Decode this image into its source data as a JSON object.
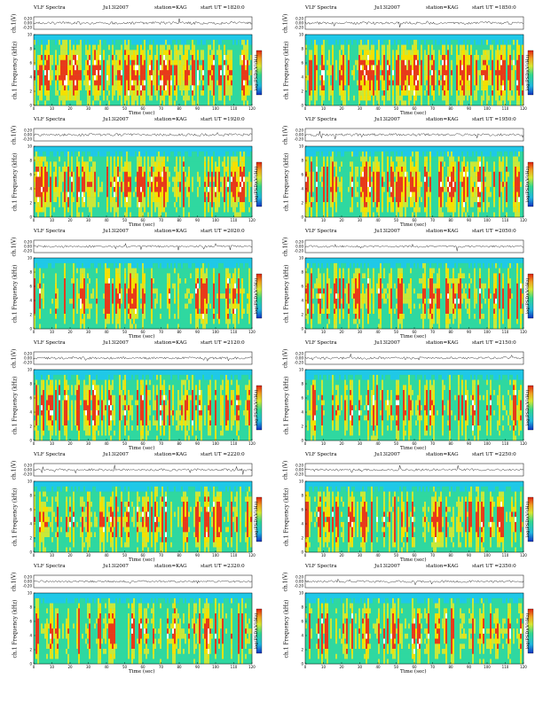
{
  "chart_data": [
    {
      "type": "heatmap",
      "header": {
        "title": "VLF Spectra",
        "date": "Ju13l2007",
        "station": "station=KAG",
        "start": "start  UT  =1820:0"
      },
      "ylabel_top": "ch.1(V)",
      "ylabel_main": "ch.1 Frequency (kHz)",
      "xlabel": "Time (sec)",
      "cbar_label": "log(PSD)(V²/Hz)",
      "x_ticks": [
        0,
        10,
        20,
        30,
        40,
        50,
        60,
        70,
        80,
        90,
        100,
        110,
        120
      ],
      "y_ticks": [
        0,
        2,
        4,
        6,
        8,
        10
      ],
      "y_ticks_top": [
        "0.20",
        "0.00",
        "-0.20"
      ],
      "xlim": [
        0,
        120
      ],
      "ylim": [
        0,
        10
      ],
      "activity": 0.62
    },
    {
      "type": "heatmap",
      "header": {
        "title": "VLF Spectra",
        "date": "Ju13l2007",
        "station": "station=KAG",
        "start": "start  UT  =1850:0"
      },
      "ylabel_top": "ch.1(V)",
      "ylabel_main": "ch.1 Frequency (kHz)",
      "xlabel": "Time (sec)",
      "cbar_label": "log(PSD)(V²/Hz)",
      "x_ticks": [
        0,
        10,
        20,
        30,
        40,
        50,
        60,
        70,
        80,
        90,
        100,
        110,
        120
      ],
      "y_ticks": [
        0,
        2,
        4,
        6,
        8,
        10
      ],
      "y_ticks_top": [
        "0.20",
        "0.00",
        "-0.20"
      ],
      "xlim": [
        0,
        120
      ],
      "ylim": [
        0,
        10
      ],
      "activity": 0.6
    },
    {
      "type": "heatmap",
      "header": {
        "title": "VLF Spectra",
        "date": "Ju13l2007",
        "station": "station=KAG",
        "start": "start  UT  =1920:0"
      },
      "ylabel_top": "ch.1(V)",
      "ylabel_main": "ch.1 Frequency (kHz)",
      "xlabel": "Time (sec)",
      "cbar_label": "log(PSD)(V²/Hz)",
      "x_ticks": [
        0,
        10,
        20,
        30,
        40,
        50,
        60,
        70,
        80,
        90,
        100,
        110,
        120
      ],
      "y_ticks": [
        0,
        2,
        4,
        6,
        8,
        10
      ],
      "y_ticks_top": [
        "0.20",
        "0.00",
        "-0.20"
      ],
      "xlim": [
        0,
        120
      ],
      "ylim": [
        0,
        10
      ],
      "activity": 0.58
    },
    {
      "type": "heatmap",
      "header": {
        "title": "VLF Spectra",
        "date": "Ju13l2007",
        "station": "station=KAG",
        "start": "start  UT  =1950:0"
      },
      "ylabel_top": "ch.1(V)",
      "ylabel_main": "ch.1 Frequency (kHz)",
      "xlabel": "Time (sec)",
      "cbar_label": "log(PSD)(V²/Hz)",
      "x_ticks": [
        0,
        10,
        20,
        30,
        40,
        50,
        60,
        70,
        80,
        90,
        100,
        110,
        120
      ],
      "y_ticks": [
        0,
        2,
        4,
        6,
        8,
        10
      ],
      "y_ticks_top": [
        "0.20",
        "0.00",
        "-0.20"
      ],
      "xlim": [
        0,
        120
      ],
      "ylim": [
        0,
        10
      ],
      "activity": 0.56
    },
    {
      "type": "heatmap",
      "header": {
        "title": "VLF Spectra",
        "date": "Ju13l2007",
        "station": "station=KAG",
        "start": "start  UT  =2020:0"
      },
      "ylabel_top": "ch.1(V)",
      "ylabel_main": "ch.1 Frequency (kHz)",
      "xlabel": "Time (sec)",
      "cbar_label": "log(PSD)(V²/Hz)",
      "x_ticks": [
        0,
        10,
        20,
        30,
        40,
        50,
        60,
        70,
        80,
        90,
        100,
        110,
        120
      ],
      "y_ticks": [
        0,
        2,
        4,
        6,
        8,
        10
      ],
      "y_ticks_top": [
        "0.20",
        "0.00",
        "-0.20"
      ],
      "xlim": [
        0,
        120
      ],
      "ylim": [
        0,
        10
      ],
      "activity": 0.4
    },
    {
      "type": "heatmap",
      "header": {
        "title": "VLF Spectra",
        "date": "Ju13l2007",
        "station": "station=KAG",
        "start": "start  UT  =2050:0"
      },
      "ylabel_top": "ch.1(V)",
      "ylabel_main": "ch.1 Frequency (kHz)",
      "xlabel": "Time (sec)",
      "cbar_label": "log(PSD)(V²/Hz)",
      "x_ticks": [
        0,
        10,
        20,
        30,
        40,
        50,
        60,
        70,
        80,
        90,
        100,
        110,
        120
      ],
      "y_ticks": [
        0,
        2,
        4,
        6,
        8,
        10
      ],
      "y_ticks_top": [
        "0.20",
        "0.00",
        "-0.20"
      ],
      "xlim": [
        0,
        120
      ],
      "ylim": [
        0,
        10
      ],
      "activity": 0.38
    },
    {
      "type": "heatmap",
      "header": {
        "title": "VLF Spectra",
        "date": "Ju13l2007",
        "station": "station=KAG",
        "start": "start  UT  =2120:0"
      },
      "ylabel_top": "ch.1(V)",
      "ylabel_main": "ch.1 Frequency (kHz)",
      "xlabel": "Time (sec)",
      "cbar_label": "log(PSD)(V²/Hz)",
      "x_ticks": [
        0,
        10,
        20,
        30,
        40,
        50,
        60,
        70,
        80,
        90,
        100,
        110,
        120
      ],
      "y_ticks": [
        0,
        2,
        4,
        6,
        8,
        10
      ],
      "y_ticks_top": [
        "0.20",
        "0.00",
        "-0.20"
      ],
      "xlim": [
        0,
        120
      ],
      "ylim": [
        0,
        10
      ],
      "activity": 0.46
    },
    {
      "type": "heatmap",
      "header": {
        "title": "VLF Spectra",
        "date": "Ju13l2007",
        "station": "station=KAG",
        "start": "start  UT  =2150:0"
      },
      "ylabel_top": "ch.1(V)",
      "ylabel_main": "ch.1 Frequency (kHz)",
      "xlabel": "Time (sec)",
      "cbar_label": "log(PSD)(V²/Hz)",
      "x_ticks": [
        0,
        10,
        20,
        30,
        40,
        50,
        60,
        70,
        80,
        90,
        100,
        110,
        120
      ],
      "y_ticks": [
        0,
        2,
        4,
        6,
        8,
        10
      ],
      "y_ticks_top": [
        "0.20",
        "0.00",
        "-0.20"
      ],
      "xlim": [
        0,
        120
      ],
      "ylim": [
        0,
        10
      ],
      "activity": 0.48
    },
    {
      "type": "heatmap",
      "header": {
        "title": "VLF Spectra",
        "date": "Ju13l2007",
        "station": "station=KAG",
        "start": "start  UT  =2220:0"
      },
      "ylabel_top": "ch.1(V)",
      "ylabel_main": "ch.1 Frequency (kHz)",
      "xlabel": "Time (sec)",
      "cbar_label": "log(PSD)(V²/Hz)",
      "x_ticks": [
        0,
        10,
        20,
        30,
        40,
        50,
        60,
        70,
        80,
        90,
        100,
        110,
        120
      ],
      "y_ticks": [
        0,
        2,
        4,
        6,
        8,
        10
      ],
      "y_ticks_top": [
        "0.20",
        "0.00",
        "-0.20"
      ],
      "xlim": [
        0,
        120
      ],
      "ylim": [
        0,
        10
      ],
      "activity": 0.42
    },
    {
      "type": "heatmap",
      "header": {
        "title": "VLF Spectra",
        "date": "Ju13l2007",
        "station": "station=KAG",
        "start": "start  UT  =2250:0"
      },
      "ylabel_top": "ch.1(V)",
      "ylabel_main": "ch.1 Frequency (kHz)",
      "xlabel": "Time (sec)",
      "cbar_label": "log(PSD)(V²/Hz)",
      "x_ticks": [
        0,
        10,
        20,
        30,
        40,
        50,
        60,
        70,
        80,
        90,
        100,
        110,
        120
      ],
      "y_ticks": [
        0,
        2,
        4,
        6,
        8,
        10
      ],
      "y_ticks_top": [
        "0.20",
        "0.00",
        "-0.20"
      ],
      "xlim": [
        0,
        120
      ],
      "ylim": [
        0,
        10
      ],
      "activity": 0.4
    },
    {
      "type": "heatmap",
      "header": {
        "title": "VLF Spectra",
        "date": "Ju13l2007",
        "station": "station=KAG",
        "start": "start  UT  =2320:0"
      },
      "ylabel_top": "ch.1(V)",
      "ylabel_main": "ch.1 Frequency (kHz)",
      "xlabel": "Time (sec)",
      "cbar_label": "log(PSD)(V²/Hz)",
      "x_ticks": [
        0,
        10,
        20,
        30,
        40,
        50,
        60,
        70,
        80,
        90,
        100,
        110,
        120
      ],
      "y_ticks": [
        0,
        2,
        4,
        6,
        8,
        10
      ],
      "y_ticks_top": [
        "0.20",
        "0.00",
        "-0.20"
      ],
      "xlim": [
        0,
        120
      ],
      "ylim": [
        0,
        10
      ],
      "activity": 0.36
    },
    {
      "type": "heatmap",
      "header": {
        "title": "VLF Spectra",
        "date": "Ju13l2007",
        "station": "station=KAG",
        "start": "start  UT  =2350:0"
      },
      "ylabel_top": "ch.1(V)",
      "ylabel_main": "ch.1 Frequency (kHz)",
      "xlabel": "Time (sec)",
      "cbar_label": "log(PSD)(V²/Hz)",
      "x_ticks": [
        0,
        10,
        20,
        30,
        40,
        50,
        60,
        70,
        80,
        90,
        100,
        110,
        120
      ],
      "y_ticks": [
        0,
        2,
        4,
        6,
        8,
        10
      ],
      "y_ticks_top": [
        "0.20",
        "0.00",
        "-0.20"
      ],
      "xlim": [
        0,
        120
      ],
      "ylim": [
        0,
        10
      ],
      "activity": 0.44
    }
  ],
  "colors": {
    "band_top": "#1fc8e8",
    "low": "#2fd8a0",
    "mid": "#c8e83a",
    "high": "#f5e000",
    "peak": "#e83a1a",
    "white": "#ffffff"
  }
}
